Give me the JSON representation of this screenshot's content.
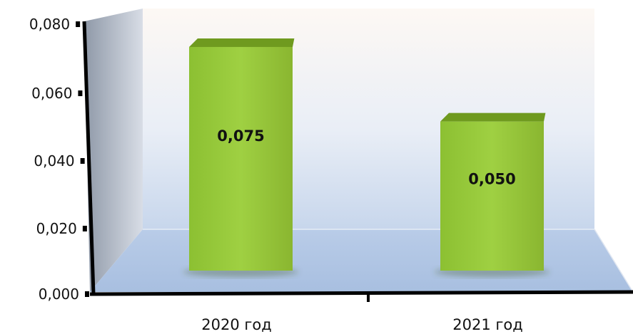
{
  "chart_data": {
    "type": "bar",
    "categories": [
      "2020 год",
      "2021 год"
    ],
    "values": [
      0.075,
      0.05
    ],
    "data_labels": [
      "0,075",
      "0,050"
    ],
    "ylim": [
      0,
      0.08
    ],
    "y_ticks": [
      "0,000",
      "0,020",
      "0,040",
      "0,060",
      "0,080"
    ],
    "title": "",
    "xlabel": "",
    "ylabel": "",
    "grid": false,
    "legend": "none",
    "colors": {
      "bar_front": "#9acd3a",
      "bar_front_dark": "#7fae26",
      "bar_top": "#6f9a1f",
      "bar_side": "#5d8418",
      "axis": "#000000"
    }
  }
}
